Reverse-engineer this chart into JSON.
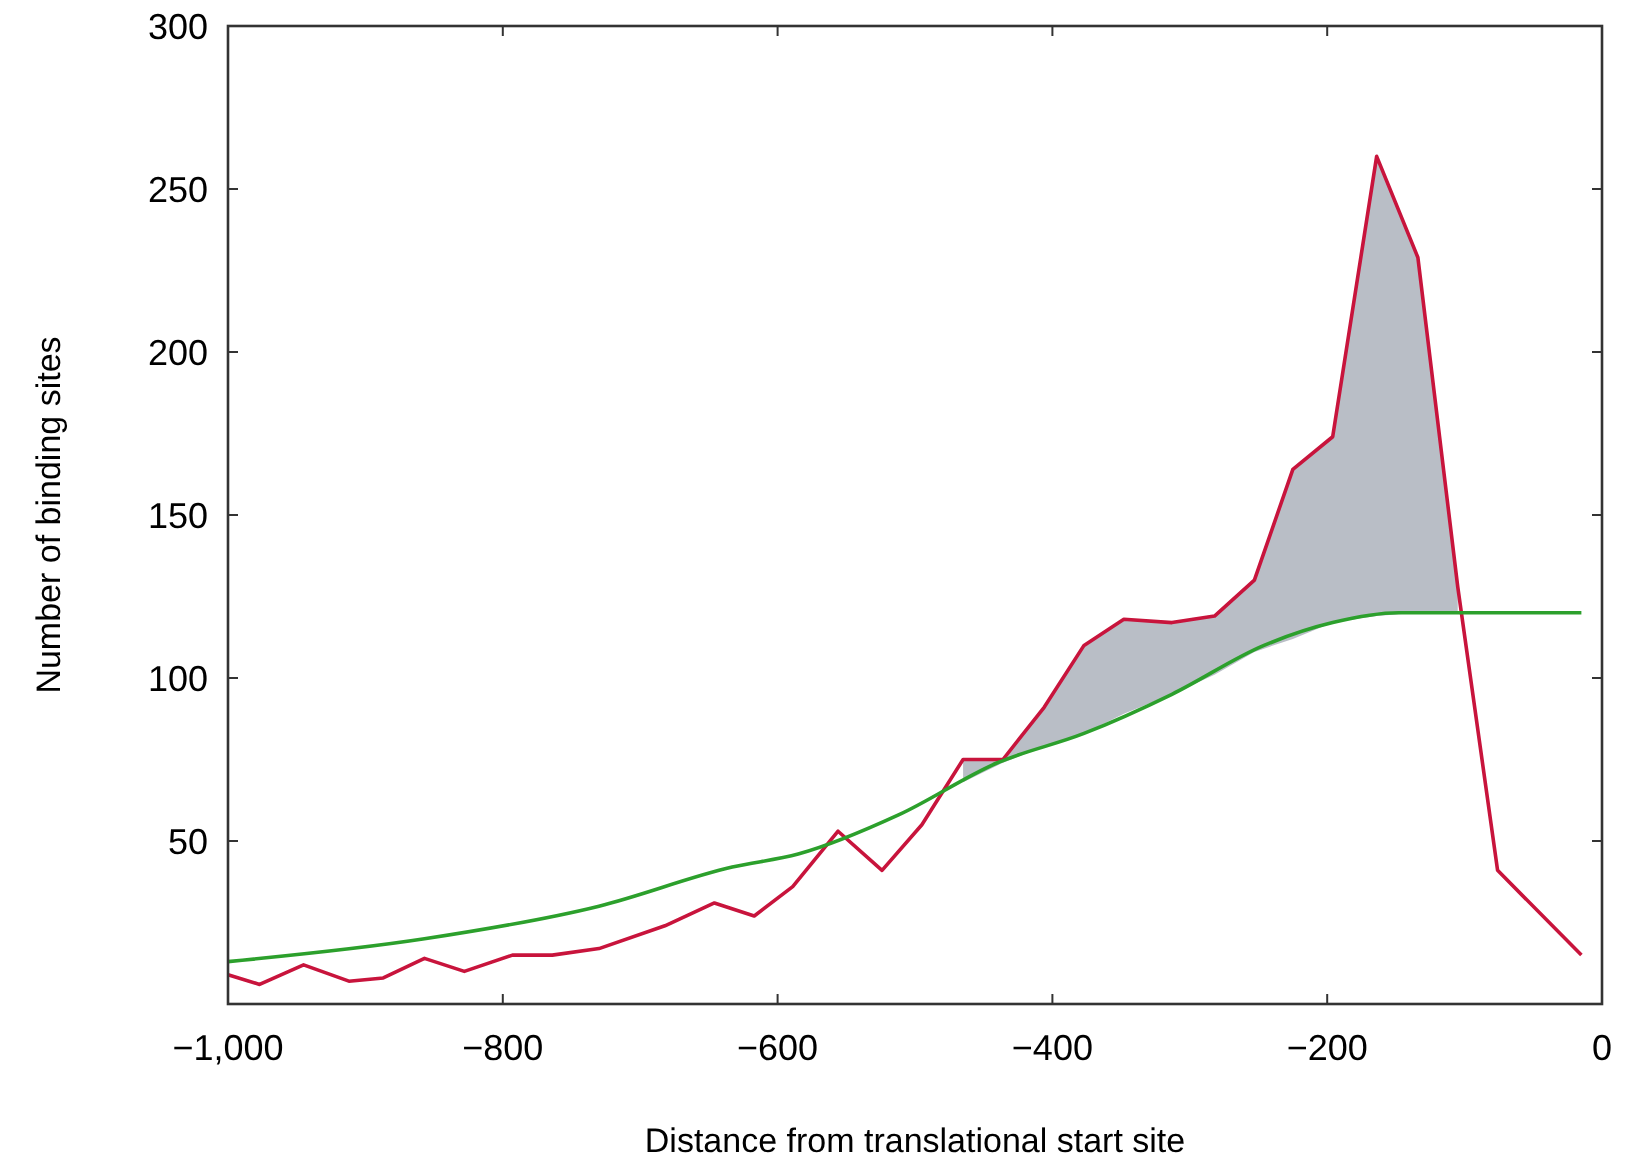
{
  "chart_data": {
    "type": "line",
    "xlabel": "Distance from translational start site",
    "ylabel": "Number of binding sites",
    "xlim": [
      -1000,
      0
    ],
    "xticks": [
      {
        "value": -1000,
        "label": "−1,000"
      },
      {
        "value": -800,
        "label": "−800"
      },
      {
        "value": -600,
        "label": "−600"
      },
      {
        "value": -400,
        "label": "−400"
      },
      {
        "value": -200,
        "label": "−200"
      },
      0
    ],
    "ylim": [
      0,
      300
    ],
    "yticks": [
      50,
      100,
      150,
      200,
      250,
      300
    ],
    "grid": false,
    "marker": "none",
    "series": [
      {
        "color": "#c8143c",
        "x": [
          -1000,
          -977,
          -945,
          -912,
          -887,
          -857,
          -828,
          -793,
          -764,
          -730,
          -682,
          -646,
          -617,
          -589,
          -556,
          -524,
          -495,
          -465,
          -436,
          -406,
          -377,
          -348,
          -313,
          -282,
          -253,
          -225,
          -196,
          -164,
          -134,
          -105,
          -76,
          -15
        ],
        "values": [
          9,
          6,
          12,
          7,
          8,
          14,
          10,
          15,
          15,
          17,
          24,
          31,
          27,
          36,
          53,
          41,
          55,
          75,
          75,
          91,
          110,
          118,
          117,
          119,
          130,
          164,
          174,
          260,
          229,
          128,
          41,
          15
        ],
        "lower": [
          null,
          null,
          null,
          null,
          null,
          null,
          null,
          null,
          null,
          null,
          null,
          null,
          null,
          null,
          null,
          null,
          null,
          68,
          74,
          79,
          83,
          89,
          95,
          101,
          108,
          112,
          117,
          119,
          120,
          120,
          null,
          null
        ],
        "upper": [
          null,
          null,
          null,
          null,
          null,
          null,
          null,
          null,
          null,
          null,
          null,
          null,
          null,
          null,
          null,
          null,
          null,
          75,
          75,
          91,
          110,
          118,
          117,
          119,
          130,
          164,
          174,
          260,
          229,
          128,
          null,
          null
        ]
      },
      {
        "color": "#2ca02c",
        "x": [
          -1000,
          -857,
          -730,
          -633,
          -585,
          -512,
          -440,
          -377,
          -313,
          -246,
          -196,
          -148,
          -15
        ],
        "values": [
          13,
          20,
          30,
          42,
          46,
          58,
          74,
          83,
          95,
          110,
          117,
          120,
          120
        ]
      }
    ]
  }
}
